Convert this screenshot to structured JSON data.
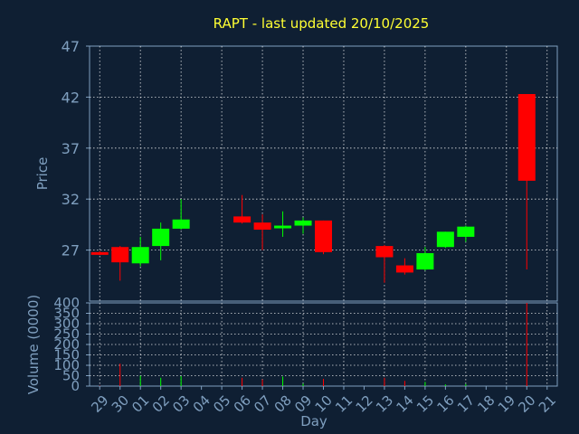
{
  "chart_data": [
    {
      "type": "candlestick",
      "title": "RAPT - last updated 20/10/2025",
      "ylabel": "Price",
      "ylim": [
        22,
        47
      ],
      "yticks": [
        27,
        32,
        37,
        42,
        47
      ],
      "grid": true,
      "colors": {
        "up": "#00ff00",
        "down": "#ff0000",
        "grid": "#ffffff",
        "axis": "#7f9fbf",
        "title": "#ffff33",
        "background": "#0f1f33"
      },
      "candles": [
        {
          "day": "29",
          "open": 26.8,
          "high": 26.9,
          "low": 26.5,
          "close": 26.6
        },
        {
          "day": "30",
          "open": 27.3,
          "high": 27.4,
          "low": 24.0,
          "close": 25.8
        },
        {
          "day": "01",
          "open": 25.7,
          "high": 28.3,
          "low": 25.4,
          "close": 27.3
        },
        {
          "day": "02",
          "open": 27.4,
          "high": 29.7,
          "low": 26.0,
          "close": 29.1
        },
        {
          "day": "03",
          "open": 29.1,
          "high": 32.0,
          "low": 29.0,
          "close": 30.0
        },
        {
          "day": "06",
          "open": 30.3,
          "high": 32.4,
          "low": 29.6,
          "close": 29.7
        },
        {
          "day": "07",
          "open": 29.7,
          "high": 30.5,
          "low": 27.0,
          "close": 29.0
        },
        {
          "day": "08",
          "open": 29.3,
          "high": 30.8,
          "low": 28.3,
          "close": 29.4
        },
        {
          "day": "09",
          "open": 29.4,
          "high": 30.2,
          "low": 28.6,
          "close": 29.9
        },
        {
          "day": "10",
          "open": 29.9,
          "high": 29.9,
          "low": 26.6,
          "close": 26.8
        },
        {
          "day": "13",
          "open": 27.4,
          "high": 27.5,
          "low": 23.8,
          "close": 26.3
        },
        {
          "day": "14",
          "open": 25.5,
          "high": 26.2,
          "low": 24.6,
          "close": 24.8
        },
        {
          "day": "15",
          "open": 25.1,
          "high": 27.3,
          "low": 25.0,
          "close": 26.7
        },
        {
          "day": "16",
          "open": 27.3,
          "high": 28.8,
          "low": 27.2,
          "close": 28.8
        },
        {
          "day": "17",
          "open": 28.3,
          "high": 29.4,
          "low": 27.8,
          "close": 29.3
        },
        {
          "day": "20",
          "open": 42.3,
          "high": 42.3,
          "low": 25.1,
          "close": 33.8
        }
      ]
    },
    {
      "type": "bar",
      "ylabel": "Volume (0000)",
      "xlabel": "Day",
      "ylim": [
        0,
        400
      ],
      "yticks": [
        0,
        50,
        100,
        150,
        200,
        250,
        300,
        350,
        400
      ],
      "xticks": [
        "29",
        "30",
        "01",
        "02",
        "03",
        "04",
        "05",
        "06",
        "07",
        "08",
        "09",
        "10",
        "11",
        "12",
        "13",
        "14",
        "15",
        "16",
        "17",
        "18",
        "19",
        "20",
        "21"
      ],
      "volumes": [
        {
          "day": "29",
          "value": 2,
          "dir": "down"
        },
        {
          "day": "30",
          "value": 108,
          "dir": "down"
        },
        {
          "day": "01",
          "value": 50,
          "dir": "up"
        },
        {
          "day": "02",
          "value": 40,
          "dir": "up"
        },
        {
          "day": "03",
          "value": 48,
          "dir": "up"
        },
        {
          "day": "06",
          "value": 40,
          "dir": "down"
        },
        {
          "day": "07",
          "value": 32,
          "dir": "down"
        },
        {
          "day": "08",
          "value": 46,
          "dir": "up"
        },
        {
          "day": "09",
          "value": 12,
          "dir": "up"
        },
        {
          "day": "10",
          "value": 35,
          "dir": "down"
        },
        {
          "day": "13",
          "value": 40,
          "dir": "down"
        },
        {
          "day": "14",
          "value": 25,
          "dir": "down"
        },
        {
          "day": "15",
          "value": 20,
          "dir": "up"
        },
        {
          "day": "16",
          "value": 8,
          "dir": "up"
        },
        {
          "day": "17",
          "value": 10,
          "dir": "up"
        },
        {
          "day": "20",
          "value": 400,
          "dir": "down"
        }
      ]
    }
  ]
}
